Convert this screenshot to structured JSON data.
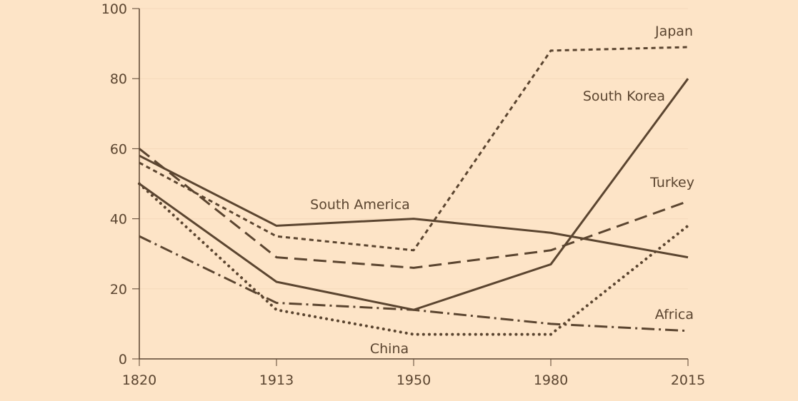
{
  "chart_data": {
    "type": "line",
    "title": "",
    "xlabel": "",
    "ylabel": "",
    "categories": [
      "1820",
      "1913",
      "1950",
      "1980",
      "2015"
    ],
    "ylim": [
      0,
      100
    ],
    "yticks": [
      0,
      20,
      40,
      60,
      80,
      100
    ],
    "grid": true,
    "legend": "inline labels",
    "series": [
      {
        "name": "Japan",
        "style": "short-dash",
        "values": [
          56,
          35,
          31,
          88,
          89
        ]
      },
      {
        "name": "South Korea",
        "style": "solid",
        "values": [
          50,
          22,
          14,
          27,
          80
        ]
      },
      {
        "name": "South America",
        "style": "solid",
        "values": [
          58,
          38,
          40,
          36,
          29
        ]
      },
      {
        "name": "Turkey",
        "style": "long-dash",
        "values": [
          60,
          29,
          26,
          31,
          45
        ]
      },
      {
        "name": "Africa",
        "style": "dash-dot",
        "values": [
          35,
          16,
          14,
          10,
          8
        ]
      },
      {
        "name": "China",
        "style": "dotted",
        "values": [
          50,
          14,
          7,
          7,
          38
        ]
      }
    ],
    "colors": {
      "line": "#5b4530",
      "background": "#fde4c7",
      "grid": "#f5d9bb"
    }
  }
}
